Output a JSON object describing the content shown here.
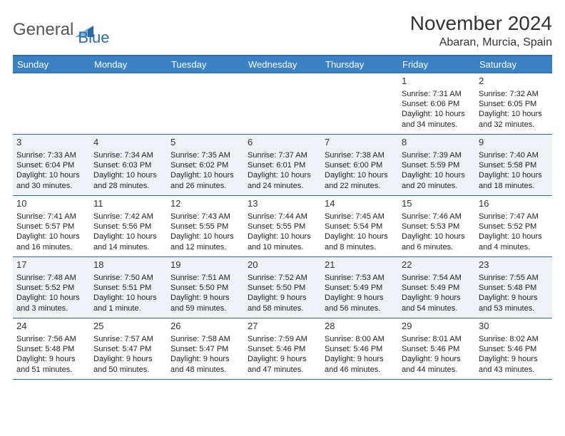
{
  "logo": {
    "part1": "General",
    "part2": "Blue"
  },
  "title": "November 2024",
  "location": "Abaran, Murcia, Spain",
  "weekdays": [
    "Sunday",
    "Monday",
    "Tuesday",
    "Wednesday",
    "Thursday",
    "Friday",
    "Saturday"
  ],
  "colors": {
    "header_bg": "#3b82c4",
    "alt_bg": "#eef2f6",
    "border": "#2b6aa8"
  },
  "days": {
    "1": {
      "sr": "7:31 AM",
      "ss": "6:06 PM",
      "dl": "10 hours and 34 minutes."
    },
    "2": {
      "sr": "7:32 AM",
      "ss": "6:05 PM",
      "dl": "10 hours and 32 minutes."
    },
    "3": {
      "sr": "7:33 AM",
      "ss": "6:04 PM",
      "dl": "10 hours and 30 minutes."
    },
    "4": {
      "sr": "7:34 AM",
      "ss": "6:03 PM",
      "dl": "10 hours and 28 minutes."
    },
    "5": {
      "sr": "7:35 AM",
      "ss": "6:02 PM",
      "dl": "10 hours and 26 minutes."
    },
    "6": {
      "sr": "7:37 AM",
      "ss": "6:01 PM",
      "dl": "10 hours and 24 minutes."
    },
    "7": {
      "sr": "7:38 AM",
      "ss": "6:00 PM",
      "dl": "10 hours and 22 minutes."
    },
    "8": {
      "sr": "7:39 AM",
      "ss": "5:59 PM",
      "dl": "10 hours and 20 minutes."
    },
    "9": {
      "sr": "7:40 AM",
      "ss": "5:58 PM",
      "dl": "10 hours and 18 minutes."
    },
    "10": {
      "sr": "7:41 AM",
      "ss": "5:57 PM",
      "dl": "10 hours and 16 minutes."
    },
    "11": {
      "sr": "7:42 AM",
      "ss": "5:56 PM",
      "dl": "10 hours and 14 minutes."
    },
    "12": {
      "sr": "7:43 AM",
      "ss": "5:55 PM",
      "dl": "10 hours and 12 minutes."
    },
    "13": {
      "sr": "7:44 AM",
      "ss": "5:55 PM",
      "dl": "10 hours and 10 minutes."
    },
    "14": {
      "sr": "7:45 AM",
      "ss": "5:54 PM",
      "dl": "10 hours and 8 minutes."
    },
    "15": {
      "sr": "7:46 AM",
      "ss": "5:53 PM",
      "dl": "10 hours and 6 minutes."
    },
    "16": {
      "sr": "7:47 AM",
      "ss": "5:52 PM",
      "dl": "10 hours and 4 minutes."
    },
    "17": {
      "sr": "7:48 AM",
      "ss": "5:52 PM",
      "dl": "10 hours and 3 minutes."
    },
    "18": {
      "sr": "7:50 AM",
      "ss": "5:51 PM",
      "dl": "10 hours and 1 minute."
    },
    "19": {
      "sr": "7:51 AM",
      "ss": "5:50 PM",
      "dl": "9 hours and 59 minutes."
    },
    "20": {
      "sr": "7:52 AM",
      "ss": "5:50 PM",
      "dl": "9 hours and 58 minutes."
    },
    "21": {
      "sr": "7:53 AM",
      "ss": "5:49 PM",
      "dl": "9 hours and 56 minutes."
    },
    "22": {
      "sr": "7:54 AM",
      "ss": "5:49 PM",
      "dl": "9 hours and 54 minutes."
    },
    "23": {
      "sr": "7:55 AM",
      "ss": "5:48 PM",
      "dl": "9 hours and 53 minutes."
    },
    "24": {
      "sr": "7:56 AM",
      "ss": "5:48 PM",
      "dl": "9 hours and 51 minutes."
    },
    "25": {
      "sr": "7:57 AM",
      "ss": "5:47 PM",
      "dl": "9 hours and 50 minutes."
    },
    "26": {
      "sr": "7:58 AM",
      "ss": "5:47 PM",
      "dl": "9 hours and 48 minutes."
    },
    "27": {
      "sr": "7:59 AM",
      "ss": "5:46 PM",
      "dl": "9 hours and 47 minutes."
    },
    "28": {
      "sr": "8:00 AM",
      "ss": "5:46 PM",
      "dl": "9 hours and 46 minutes."
    },
    "29": {
      "sr": "8:01 AM",
      "ss": "5:46 PM",
      "dl": "9 hours and 44 minutes."
    },
    "30": {
      "sr": "8:02 AM",
      "ss": "5:46 PM",
      "dl": "9 hours and 43 minutes."
    }
  },
  "grid": [
    [
      null,
      null,
      null,
      null,
      null,
      "1",
      "2"
    ],
    [
      "3",
      "4",
      "5",
      "6",
      "7",
      "8",
      "9"
    ],
    [
      "10",
      "11",
      "12",
      "13",
      "14",
      "15",
      "16"
    ],
    [
      "17",
      "18",
      "19",
      "20",
      "21",
      "22",
      "23"
    ],
    [
      "24",
      "25",
      "26",
      "27",
      "28",
      "29",
      "30"
    ]
  ],
  "labels": {
    "sunrise": "Sunrise:",
    "sunset": "Sunset:",
    "daylight": "Daylight:"
  }
}
